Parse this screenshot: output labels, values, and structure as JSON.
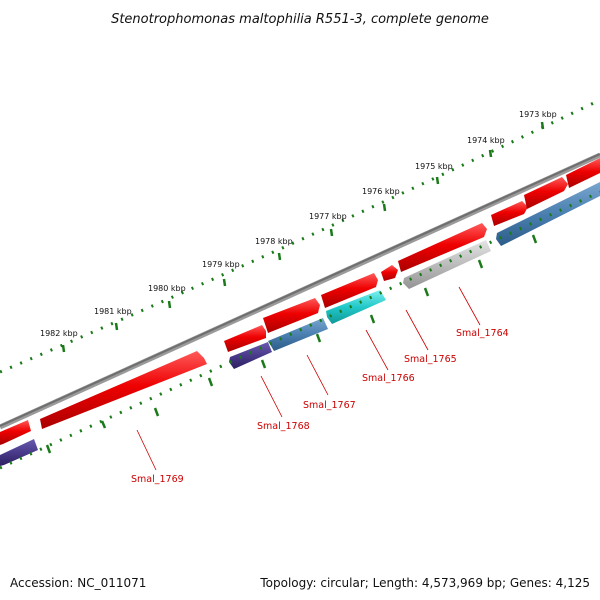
{
  "title": "Stenotrophomonas maltophilia R551-3, complete genome",
  "footer": {
    "accession": "Accession: NC_011071",
    "summary": "Topology: circular; Length: 4,573,969 bp; Genes: 4,125"
  },
  "scale_labels": [
    "1973 kbp",
    "1974 kbp",
    "1975 kbp",
    "1976 kbp",
    "1977 kbp",
    "1978 kbp",
    "1979 kbp",
    "1980 kbp",
    "1981 kbp",
    "1982 kbp"
  ],
  "gene_labels": [
    "Smal_1764",
    "Smal_1765",
    "Smal_1766",
    "Smal_1767",
    "Smal_1768",
    "Smal_1769"
  ],
  "colors": {
    "backbone": "#7a7a7a",
    "tick": "#1a7a1a",
    "gene_red": "#ee1111",
    "gene_blue": "#4a7fb0",
    "gene_cyan": "#22c8c8",
    "gene_purple": "#4a3a8a",
    "gene_grey": "#bcbcbc",
    "label_red": "#cc0000"
  }
}
